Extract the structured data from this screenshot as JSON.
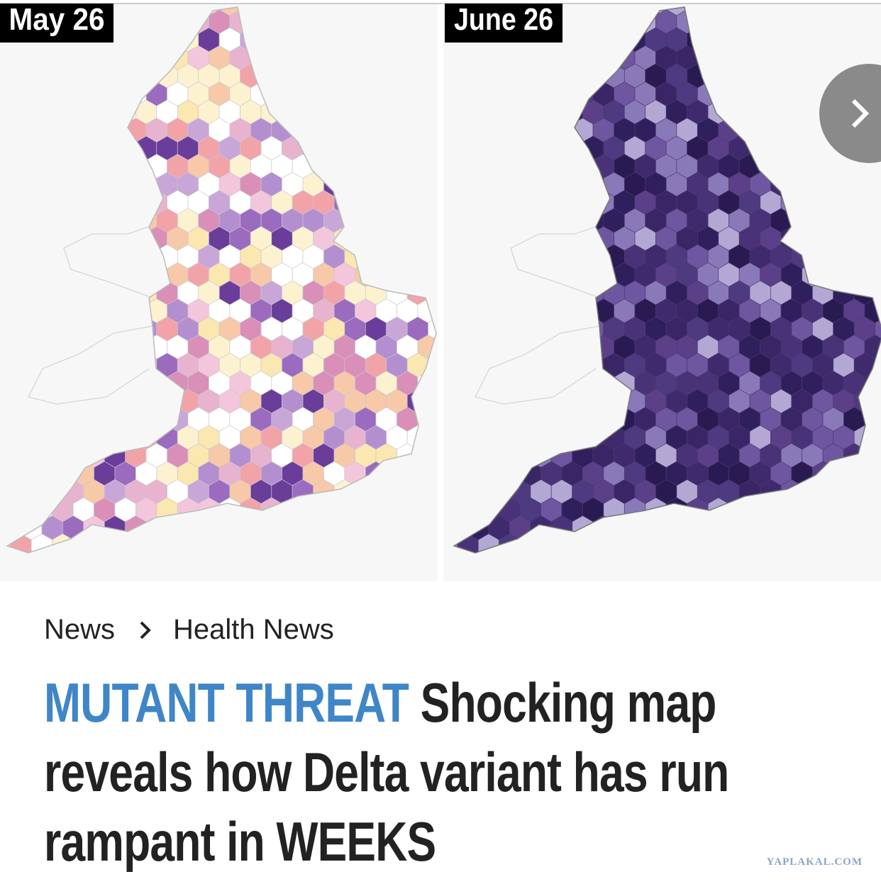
{
  "panels": [
    {
      "label": "May 26"
    },
    {
      "label": "June 26"
    }
  ],
  "breadcrumb": [
    "News",
    "Health News"
  ],
  "headline": {
    "kicker": "MUTANT THREAT",
    "text": "Shocking map reveals how Delta variant has run rampant in WEEKS"
  },
  "watermark": "YAPLAKAL.COM"
}
